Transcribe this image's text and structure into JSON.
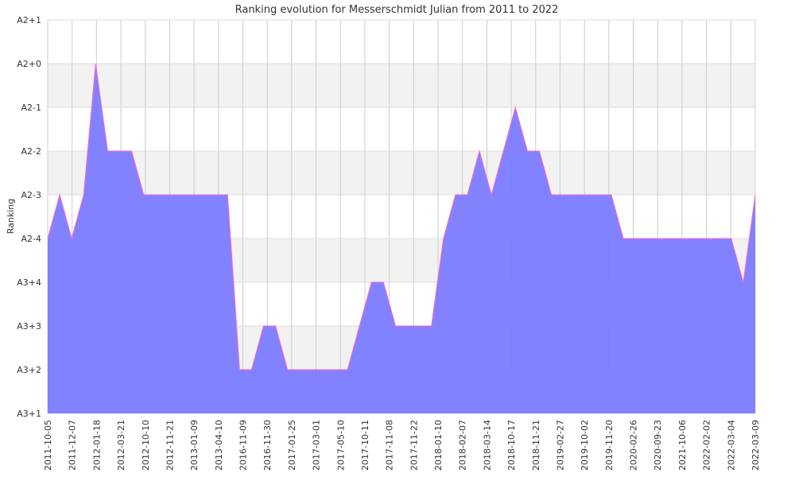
{
  "chart_data": {
    "type": "area",
    "title": "Ranking evolution for Messerschmidt Julian from 2011 to 2022",
    "xlabel": "",
    "ylabel": "Ranking",
    "y_tick_labels": [
      "A3+1",
      "A3+2",
      "A3+3",
      "A3+4",
      "A2-4",
      "A2-3",
      "A2-2",
      "A2-1",
      "A2+0",
      "A2+1"
    ],
    "x_tick_labels": [
      "2011-10-05",
      "2011-12-07",
      "2012-01-18",
      "2012-03-21",
      "2012-10-10",
      "2012-11-21",
      "2013-01-09",
      "2013-04-10",
      "2016-11-09",
      "2016-11-30",
      "2017-01-25",
      "2017-03-01",
      "2017-05-10",
      "2017-10-11",
      "2017-11-08",
      "2017-11-22",
      "2018-01-10",
      "2018-02-07",
      "2018-03-14",
      "2018-10-17",
      "2018-11-21",
      "2019-02-27",
      "2019-10-02",
      "2019-11-20",
      "2020-02-26",
      "2020-09-23",
      "2021-10-06",
      "2022-02-02",
      "2022-03-04",
      "2022-03-09"
    ],
    "grid": true,
    "bands": "alternating",
    "series": [
      {
        "fill_color": "#7b7bff",
        "line_color": "#ff66cc",
        "values": [
          4,
          5,
          4,
          5,
          8,
          6,
          6,
          6,
          5,
          5,
          5,
          5,
          5,
          5,
          5,
          5,
          1,
          1,
          2,
          2,
          1,
          1,
          1,
          1,
          1,
          1,
          2,
          3,
          3,
          2,
          2,
          2,
          2,
          4,
          5,
          5,
          6,
          5,
          6,
          7,
          6,
          6,
          5,
          5,
          5,
          5,
          5,
          5,
          4,
          4,
          4,
          4,
          4,
          4,
          4,
          4,
          4,
          4,
          3,
          5
        ]
      }
    ]
  }
}
